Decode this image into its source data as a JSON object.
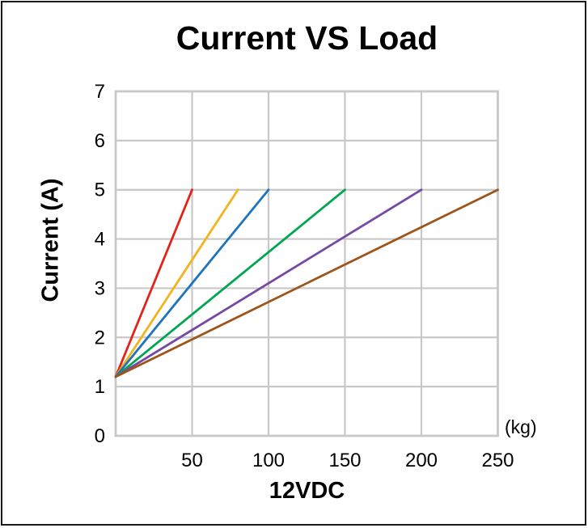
{
  "chart_data": {
    "type": "line",
    "title": "Current VS Load",
    "xlabel": "12VDC",
    "x_unit": "(kg)",
    "ylabel": "Current (A)",
    "xlim": [
      0,
      250
    ],
    "ylim": [
      0,
      7
    ],
    "x_ticks": [
      50,
      100,
      150,
      200,
      250
    ],
    "y_ticks": [
      0,
      1,
      2,
      3,
      4,
      5,
      6,
      7
    ],
    "grid": true,
    "legend_position": "none",
    "series": [
      {
        "name": "red",
        "color": "#e2231a",
        "x": [
          0,
          50
        ],
        "y": [
          1.2,
          5.0
        ]
      },
      {
        "name": "yellow",
        "color": "#f3b31b",
        "x": [
          0,
          80
        ],
        "y": [
          1.2,
          5.0
        ]
      },
      {
        "name": "blue",
        "color": "#1d74bd",
        "x": [
          0,
          100
        ],
        "y": [
          1.2,
          5.0
        ]
      },
      {
        "name": "green",
        "color": "#00a651",
        "x": [
          0,
          150
        ],
        "y": [
          1.2,
          5.0
        ]
      },
      {
        "name": "purple",
        "color": "#7649a4",
        "x": [
          0,
          200
        ],
        "y": [
          1.2,
          5.0
        ]
      },
      {
        "name": "brown",
        "color": "#9e551c",
        "x": [
          0,
          250
        ],
        "y": [
          1.2,
          5.0
        ]
      }
    ],
    "colors": {
      "grid": "#c8c8c8",
      "plot_border": "#c8c8c8",
      "text": "#000000",
      "background": "#ffffff",
      "outer_border": "#1a1a1a"
    }
  }
}
